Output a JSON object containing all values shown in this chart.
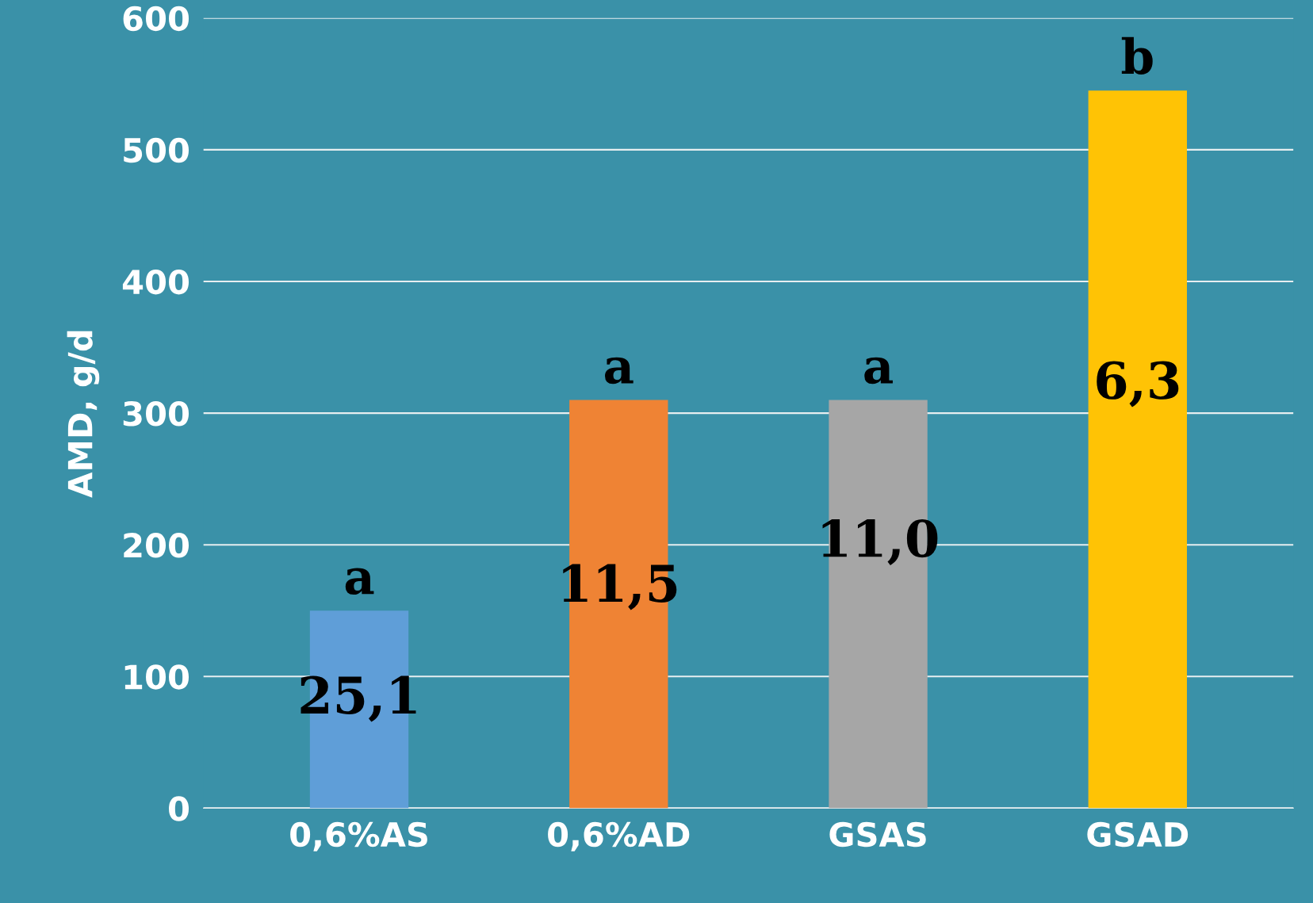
{
  "chart_data": {
    "type": "bar",
    "ylabel": "AMD, g/d",
    "categories": [
      "0,6%AS",
      "0,6%AD",
      "GSAS",
      "GSAD"
    ],
    "values": [
      150,
      310,
      310,
      545
    ],
    "colors": [
      "#5f9ed8",
      "#ef8334",
      "#a6a6a6",
      "#ffc305"
    ],
    "ylim": [
      0,
      600
    ],
    "yticks": [
      0,
      100,
      200,
      300,
      400,
      500,
      600
    ],
    "grid": "y",
    "legend": false,
    "annotations": [
      {
        "text": "a",
        "x": "0,6%AS",
        "y": 150
      },
      {
        "text": "a",
        "x": "0,6%AD",
        "y": 310
      },
      {
        "text": "a",
        "x": "GSAS",
        "y": 310
      },
      {
        "text": "b",
        "x": "GSAD",
        "y": 545
      },
      "25,1",
      "11,5",
      "11,0",
      "6,3"
    ]
  }
}
